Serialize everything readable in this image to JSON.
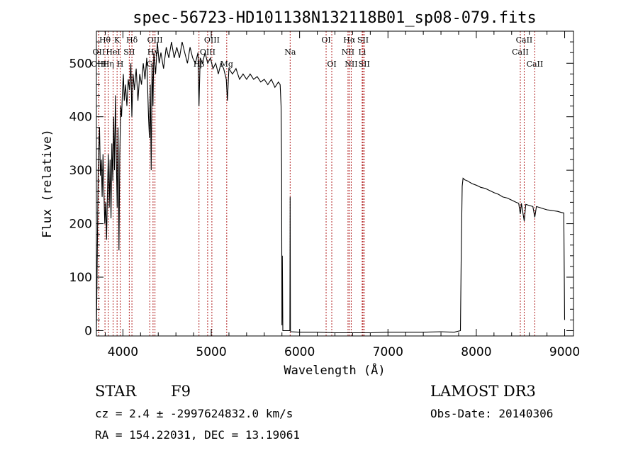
{
  "chart_data": {
    "type": "line",
    "title": "spec-56723-HD101138N132118B01_sp08-079.fits",
    "xlabel": "Wavelength (Å)",
    "ylabel": "Flux (relative)",
    "xlim": [
      3700,
      9100
    ],
    "ylim": [
      -10,
      560
    ],
    "xticks": [
      4000,
      5000,
      6000,
      7000,
      8000,
      9000
    ],
    "yticks": [
      0,
      100,
      200,
      300,
      400,
      500
    ],
    "series": [
      {
        "name": "flux",
        "points": [
          [
            3700,
            0
          ],
          [
            3710,
            140
          ],
          [
            3720,
            300
          ],
          [
            3735,
            380
          ],
          [
            3745,
            290
          ],
          [
            3755,
            320
          ],
          [
            3765,
            250
          ],
          [
            3775,
            330
          ],
          [
            3785,
            260
          ],
          [
            3795,
            200
          ],
          [
            3805,
            240
          ],
          [
            3815,
            170
          ],
          [
            3825,
            260
          ],
          [
            3835,
            330
          ],
          [
            3845,
            230
          ],
          [
            3855,
            320
          ],
          [
            3865,
            210
          ],
          [
            3875,
            350
          ],
          [
            3885,
            280
          ],
          [
            3895,
            400
          ],
          [
            3905,
            300
          ],
          [
            3915,
            440
          ],
          [
            3925,
            330
          ],
          [
            3935,
            230
          ],
          [
            3945,
            380
          ],
          [
            3955,
            150
          ],
          [
            3965,
            330
          ],
          [
            3975,
            420
          ],
          [
            3985,
            400
          ],
          [
            3995,
            450
          ],
          [
            4005,
            480
          ],
          [
            4015,
            430
          ],
          [
            4030,
            460
          ],
          [
            4045,
            420
          ],
          [
            4060,
            470
          ],
          [
            4075,
            450
          ],
          [
            4090,
            500
          ],
          [
            4101,
            400
          ],
          [
            4115,
            480
          ],
          [
            4130,
            450
          ],
          [
            4150,
            490
          ],
          [
            4170,
            430
          ],
          [
            4190,
            480
          ],
          [
            4210,
            460
          ],
          [
            4230,
            500
          ],
          [
            4250,
            470
          ],
          [
            4270,
            510
          ],
          [
            4290,
            400
          ],
          [
            4300,
            360
          ],
          [
            4310,
            460
          ],
          [
            4320,
            300
          ],
          [
            4330,
            500
          ],
          [
            4340,
            420
          ],
          [
            4350,
            520
          ],
          [
            4370,
            480
          ],
          [
            4390,
            540
          ],
          [
            4410,
            500
          ],
          [
            4430,
            520
          ],
          [
            4460,
            490
          ],
          [
            4490,
            530
          ],
          [
            4520,
            510
          ],
          [
            4550,
            540
          ],
          [
            4580,
            510
          ],
          [
            4610,
            530
          ],
          [
            4640,
            510
          ],
          [
            4670,
            540
          ],
          [
            4700,
            520
          ],
          [
            4730,
            500
          ],
          [
            4760,
            530
          ],
          [
            4790,
            510
          ],
          [
            4820,
            500
          ],
          [
            4850,
            520
          ],
          [
            4861,
            420
          ],
          [
            4875,
            510
          ],
          [
            4900,
            500
          ],
          [
            4930,
            520
          ],
          [
            4960,
            500
          ],
          [
            4990,
            510
          ],
          [
            5020,
            490
          ],
          [
            5050,
            500
          ],
          [
            5080,
            480
          ],
          [
            5110,
            500
          ],
          [
            5140,
            490
          ],
          [
            5170,
            470
          ],
          [
            5183,
            430
          ],
          [
            5200,
            490
          ],
          [
            5240,
            480
          ],
          [
            5280,
            490
          ],
          [
            5320,
            470
          ],
          [
            5360,
            480
          ],
          [
            5400,
            470
          ],
          [
            5440,
            480
          ],
          [
            5480,
            470
          ],
          [
            5520,
            475
          ],
          [
            5560,
            465
          ],
          [
            5600,
            470
          ],
          [
            5640,
            460
          ],
          [
            5680,
            470
          ],
          [
            5720,
            455
          ],
          [
            5760,
            465
          ],
          [
            5780,
            460
          ],
          [
            5790,
            420
          ],
          [
            5797,
            300
          ],
          [
            5800,
            10
          ],
          [
            5805,
            140
          ],
          [
            5810,
            0
          ],
          [
            5820,
            0
          ],
          [
            5850,
            0
          ],
          [
            5870,
            0
          ],
          [
            5880,
            0
          ],
          [
            5890,
            0
          ],
          [
            5893,
            250
          ],
          [
            5896,
            0
          ],
          [
            5900,
            -2
          ],
          [
            6000,
            -3
          ],
          [
            6200,
            -3
          ],
          [
            6400,
            -4
          ],
          [
            6600,
            -4
          ],
          [
            6800,
            -4
          ],
          [
            7000,
            -3
          ],
          [
            7200,
            -3
          ],
          [
            7400,
            -3
          ],
          [
            7600,
            -2
          ],
          [
            7750,
            -3
          ],
          [
            7820,
            0
          ],
          [
            7830,
            150
          ],
          [
            7840,
            270
          ],
          [
            7850,
            285
          ],
          [
            7870,
            282
          ],
          [
            7900,
            280
          ],
          [
            7950,
            275
          ],
          [
            8000,
            272
          ],
          [
            8050,
            268
          ],
          [
            8100,
            266
          ],
          [
            8150,
            262
          ],
          [
            8200,
            258
          ],
          [
            8250,
            255
          ],
          [
            8300,
            250
          ],
          [
            8350,
            248
          ],
          [
            8400,
            244
          ],
          [
            8450,
            240
          ],
          [
            8480,
            238
          ],
          [
            8498,
            218
          ],
          [
            8510,
            238
          ],
          [
            8542,
            205
          ],
          [
            8560,
            236
          ],
          [
            8600,
            234
          ],
          [
            8640,
            232
          ],
          [
            8662,
            212
          ],
          [
            8680,
            232
          ],
          [
            8720,
            230
          ],
          [
            8760,
            228
          ],
          [
            8800,
            226
          ],
          [
            8840,
            225
          ],
          [
            8880,
            224
          ],
          [
            8920,
            223
          ],
          [
            8960,
            221
          ],
          [
            8990,
            220
          ],
          [
            9000,
            20
          ]
        ]
      }
    ],
    "lines": [
      {
        "name": "Hθ",
        "wave": 3797,
        "row": 0
      },
      {
        "name": "OII",
        "wave": 3727,
        "row": 1
      },
      {
        "name": "OIII",
        "wave": 3727,
        "row": 2
      },
      {
        "name": "K",
        "wave": 3934,
        "row": 0
      },
      {
        "name": "HeI",
        "wave": 3889,
        "row": 1
      },
      {
        "name": "Hη",
        "wave": 3835,
        "row": 2
      },
      {
        "name": "Hδ",
        "wave": 4102,
        "row": 0
      },
      {
        "name": "SII",
        "wave": 4072,
        "row": 1
      },
      {
        "name": "H",
        "wave": 3969,
        "row": 2
      },
      {
        "name": "OIII",
        "wave": 4363,
        "row": 0
      },
      {
        "name": "Hγ",
        "wave": 4341,
        "row": 1
      },
      {
        "name": "G",
        "wave": 4304,
        "row": 2
      },
      {
        "name": "OIII",
        "wave": 5007,
        "row": 0
      },
      {
        "name": "OIII",
        "wave": 4959,
        "row": 1
      },
      {
        "name": "Hβ",
        "wave": 4861,
        "row": 2
      },
      {
        "name": "Mg",
        "wave": 5175,
        "row": 2
      },
      {
        "name": "Na",
        "wave": 5893,
        "row": 1
      },
      {
        "name": "OI",
        "wave": 6300,
        "row": 0
      },
      {
        "name": "OI",
        "wave": 6364,
        "row": 2
      },
      {
        "name": "Hα",
        "wave": 6563,
        "row": 0
      },
      {
        "name": "SII",
        "wave": 6717,
        "row": 0
      },
      {
        "name": "NII",
        "wave": 6548,
        "row": 1
      },
      {
        "name": "Li",
        "wave": 6708,
        "row": 1
      },
      {
        "name": "NII",
        "wave": 6584,
        "row": 2
      },
      {
        "name": "SII",
        "wave": 6731,
        "row": 2
      },
      {
        "name": "CaII",
        "wave": 8542,
        "row": 0
      },
      {
        "name": "CaII",
        "wave": 8498,
        "row": 1
      },
      {
        "name": "CaII",
        "wave": 8662,
        "row": 2
      }
    ]
  },
  "info": {
    "object_class": "STAR",
    "subclass": "F9",
    "survey": "LAMOST DR3",
    "redshift_line": "cz = 2.4 ± -2997624832.0 km/s",
    "obs_date": "Obs-Date: 20140306",
    "coords": "RA = 154.22031, DEC =  13.19061"
  },
  "colors": {
    "line_marker": "#b22222",
    "spectrum": "#000000",
    "axes": "#000000"
  }
}
